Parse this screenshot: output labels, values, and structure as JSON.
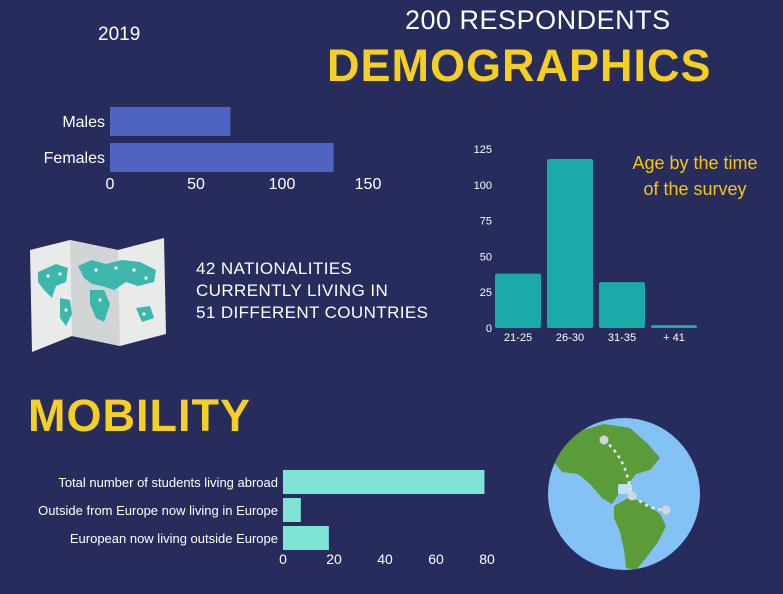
{
  "header": {
    "year": "2019",
    "respondents": "200 RESPONDENTS",
    "section_title": "DEMOGRAPHICS"
  },
  "nationalities": {
    "line1": "42 NATIONALITIES",
    "line2": "CURRENTLY LIVING IN",
    "line3": "51 DIFFERENT COUNTRIES"
  },
  "age_note": {
    "line1": "Age by the time",
    "line2": "of the survey"
  },
  "mobility": {
    "title": "MOBILITY"
  },
  "icons": {
    "map": "world-map-icon",
    "globe": "globe-icon"
  },
  "colors": {
    "background": "#272c5d",
    "gender_bar": "#4f63c0",
    "age_bar": "#1aaba8",
    "mobility_bar": "#7fe3d6",
    "title_yellow": "#f5d020"
  },
  "chart_data": [
    {
      "type": "bar",
      "orientation": "horizontal",
      "categories": [
        "Males",
        "Females"
      ],
      "values": [
        70,
        130
      ],
      "xlim": [
        0,
        150
      ],
      "xticks": [
        "0",
        "50",
        "100",
        "150"
      ],
      "title": "",
      "xlabel": "",
      "ylabel": ""
    },
    {
      "type": "bar",
      "orientation": "vertical",
      "categories": [
        "21-25",
        "26-30",
        "31-35",
        "+ 41"
      ],
      "values": [
        38,
        118,
        32,
        2
      ],
      "ylim": [
        0,
        125
      ],
      "yticks": [
        "0",
        "25",
        "50",
        "75",
        "100",
        "125"
      ],
      "title": "",
      "xlabel": "",
      "ylabel": ""
    },
    {
      "type": "bar",
      "orientation": "horizontal",
      "categories": [
        "Total number of students living abroad",
        "Outside from Europe now living in Europe",
        "European now living outside Europe"
      ],
      "values": [
        79,
        7,
        18
      ],
      "xlim": [
        0,
        80
      ],
      "xticks": [
        "0",
        "20",
        "40",
        "60",
        "80"
      ],
      "title": "",
      "xlabel": "",
      "ylabel": ""
    }
  ]
}
